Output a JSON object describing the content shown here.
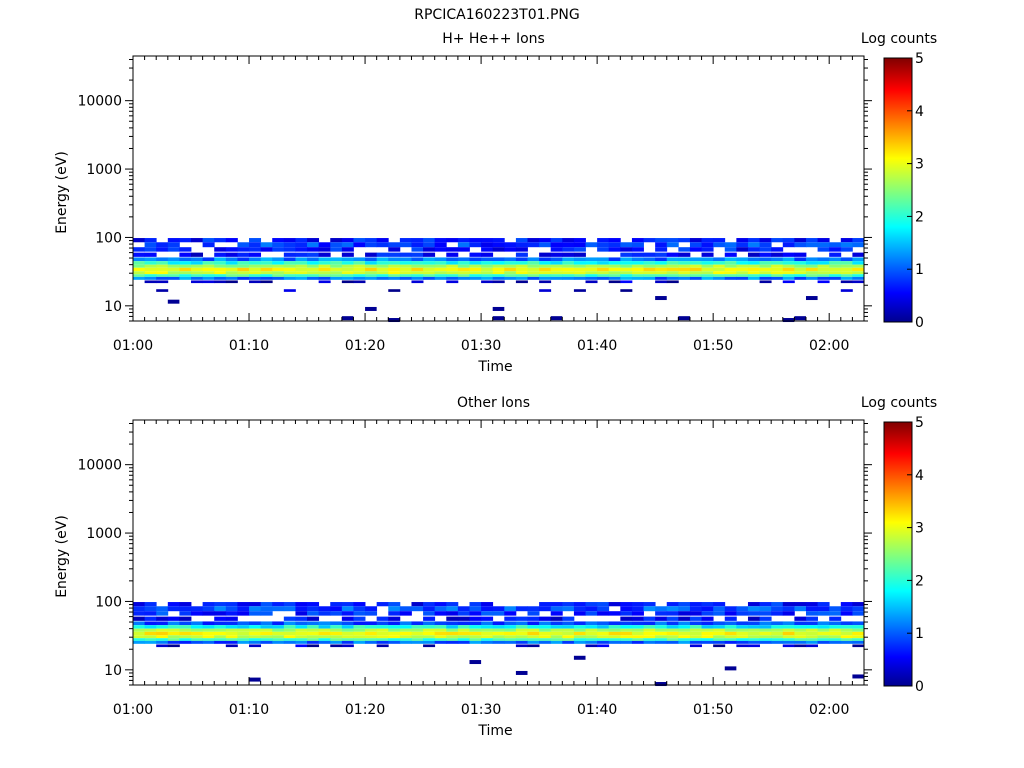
{
  "figure": {
    "title": "RPCICA160223T01.PNG"
  },
  "colorbar": {
    "label": "Log counts",
    "ticks": [
      "0",
      "1",
      "2",
      "3",
      "4",
      "5"
    ],
    "range": [
      0,
      5
    ]
  },
  "chart_data": [
    {
      "type": "heatmap",
      "title": "H+ He++ Ions",
      "xlabel": "Time",
      "ylabel": "Energy (eV)",
      "x_range_minutes": [
        0,
        63
      ],
      "x_ticks": [
        "01:00",
        "01:10",
        "01:20",
        "01:30",
        "01:40",
        "01:50",
        "02:00"
      ],
      "y_scale": "log",
      "y_range": [
        6,
        45000
      ],
      "y_ticks": [
        "10",
        "100",
        "1000",
        "10000"
      ],
      "time_bin_minutes": 1,
      "colorbar_label": "Log counts",
      "colorbar_range": [
        0,
        5
      ],
      "energy_bands": [
        {
          "e_low": 85,
          "e_high": 98,
          "mean_log_counts": 0.7,
          "coverage": 0.85
        },
        {
          "e_low": 72,
          "e_high": 85,
          "mean_log_counts": 0.9,
          "coverage": 0.85
        },
        {
          "e_low": 62,
          "e_high": 72,
          "mean_log_counts": 0.7,
          "coverage": 0.75
        },
        {
          "e_low": 52,
          "e_high": 60,
          "mean_log_counts": 0.6,
          "coverage": 0.65
        },
        {
          "e_low": 45,
          "e_high": 51,
          "mean_log_counts": 1.2,
          "coverage": 1.0
        },
        {
          "e_low": 40,
          "e_high": 45,
          "mean_log_counts": 2.0,
          "coverage": 1.0
        },
        {
          "e_low": 36,
          "e_high": 40,
          "mean_log_counts": 2.7,
          "coverage": 1.0
        },
        {
          "e_low": 32,
          "e_high": 36,
          "mean_log_counts": 3.1,
          "coverage": 1.0
        },
        {
          "e_low": 29,
          "e_high": 32,
          "mean_log_counts": 2.9,
          "coverage": 1.0
        },
        {
          "e_low": 26.5,
          "e_high": 29,
          "mean_log_counts": 2.2,
          "coverage": 1.0
        },
        {
          "e_low": 24,
          "e_high": 26.5,
          "mean_log_counts": 1.2,
          "coverage": 1.0
        },
        {
          "e_low": 21.5,
          "e_high": 23.5,
          "mean_log_counts": 0.3,
          "coverage": 0.4
        },
        {
          "e_low": 16,
          "e_high": 17.5,
          "mean_log_counts": 0.2,
          "coverage": 0.15
        }
      ],
      "isolated_counts": [
        {
          "t": 3,
          "e": 11.5,
          "v": 0.1
        },
        {
          "t": 18,
          "e": 6.6,
          "v": 0.1
        },
        {
          "t": 20,
          "e": 9.0,
          "v": 0.1
        },
        {
          "t": 22,
          "e": 6.2,
          "v": 0.1
        },
        {
          "t": 31,
          "e": 6.6,
          "v": 0.1
        },
        {
          "t": 31,
          "e": 9.0,
          "v": 0.1
        },
        {
          "t": 36,
          "e": 6.6,
          "v": 0.1
        },
        {
          "t": 45,
          "e": 13.0,
          "v": 0.1
        },
        {
          "t": 47,
          "e": 6.6,
          "v": 0.1
        },
        {
          "t": 56,
          "e": 6.2,
          "v": 0.1
        },
        {
          "t": 57,
          "e": 6.6,
          "v": 0.1
        },
        {
          "t": 58,
          "e": 13.0,
          "v": 0.1
        }
      ]
    },
    {
      "type": "heatmap",
      "title": "Other Ions",
      "xlabel": "Time",
      "ylabel": "Energy (eV)",
      "x_range_minutes": [
        0,
        63
      ],
      "x_ticks": [
        "01:00",
        "01:10",
        "01:20",
        "01:30",
        "01:40",
        "01:50",
        "02:00"
      ],
      "y_scale": "log",
      "y_range": [
        6,
        45000
      ],
      "y_ticks": [
        "10",
        "100",
        "1000",
        "10000"
      ],
      "time_bin_minutes": 1,
      "colorbar_label": "Log counts",
      "colorbar_range": [
        0,
        5
      ],
      "energy_bands": [
        {
          "e_low": 85,
          "e_high": 98,
          "mean_log_counts": 0.7,
          "coverage": 0.75
        },
        {
          "e_low": 72,
          "e_high": 85,
          "mean_log_counts": 1.0,
          "coverage": 0.9
        },
        {
          "e_low": 62,
          "e_high": 72,
          "mean_log_counts": 0.8,
          "coverage": 0.8
        },
        {
          "e_low": 52,
          "e_high": 60,
          "mean_log_counts": 0.6,
          "coverage": 0.6
        },
        {
          "e_low": 45,
          "e_high": 51,
          "mean_log_counts": 1.0,
          "coverage": 1.0
        },
        {
          "e_low": 40,
          "e_high": 45,
          "mean_log_counts": 1.9,
          "coverage": 1.0
        },
        {
          "e_low": 36,
          "e_high": 40,
          "mean_log_counts": 2.7,
          "coverage": 1.0
        },
        {
          "e_low": 32,
          "e_high": 36,
          "mean_log_counts": 3.1,
          "coverage": 1.0
        },
        {
          "e_low": 29,
          "e_high": 32,
          "mean_log_counts": 2.9,
          "coverage": 1.0
        },
        {
          "e_low": 26.5,
          "e_high": 29,
          "mean_log_counts": 2.2,
          "coverage": 1.0
        },
        {
          "e_low": 24,
          "e_high": 26.5,
          "mean_log_counts": 1.1,
          "coverage": 1.0
        },
        {
          "e_low": 21.5,
          "e_high": 23.5,
          "mean_log_counts": 0.3,
          "coverage": 0.35
        }
      ],
      "isolated_counts": [
        {
          "t": 10,
          "e": 7.2,
          "v": 0.1
        },
        {
          "t": 29,
          "e": 13.0,
          "v": 0.1
        },
        {
          "t": 33,
          "e": 9.0,
          "v": 0.1
        },
        {
          "t": 38,
          "e": 15.0,
          "v": 0.1
        },
        {
          "t": 45,
          "e": 6.2,
          "v": 0.1
        },
        {
          "t": 51,
          "e": 10.5,
          "v": 0.1
        },
        {
          "t": 62,
          "e": 8.0,
          "v": 0.1
        }
      ]
    }
  ]
}
